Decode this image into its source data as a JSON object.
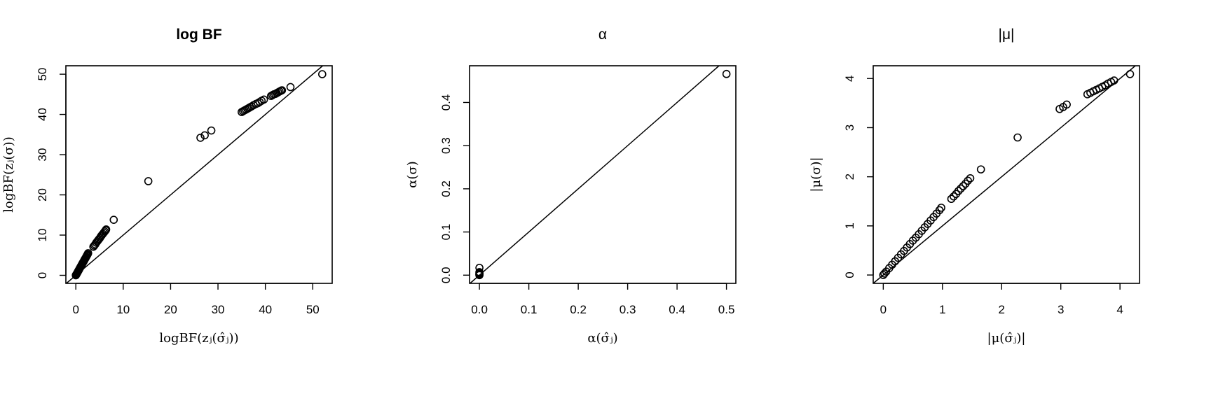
{
  "chart_data": [
    {
      "type": "scatter",
      "title": "log BF",
      "title_bold": true,
      "xlabel": "logBF(zⱼ(σ̂ⱼ))",
      "ylabel": "logBF(zⱼ(σ))",
      "xlim": [
        -2.1,
        54.1
      ],
      "ylim": [
        -2.0,
        52.1
      ],
      "xticks": [
        0,
        10,
        20,
        30,
        40,
        50
      ],
      "yticks": [
        0,
        10,
        20,
        30,
        40,
        50
      ],
      "xtick_labels": [
        "0",
        "10",
        "20",
        "30",
        "40",
        "50"
      ],
      "ytick_labels": [
        "0",
        "10",
        "20",
        "30",
        "40",
        "50"
      ],
      "reference_line": "y = x",
      "grid": false,
      "points": [
        [
          0,
          0
        ],
        [
          0.05,
          0.1
        ],
        [
          0.1,
          0.2
        ],
        [
          0.2,
          0.4
        ],
        [
          0.3,
          0.6
        ],
        [
          0.4,
          0.8
        ],
        [
          0.5,
          1.05
        ],
        [
          0.6,
          1.25
        ],
        [
          0.7,
          1.45
        ],
        [
          0.8,
          1.7
        ],
        [
          0.9,
          1.9
        ],
        [
          1.0,
          2.1
        ],
        [
          1.1,
          2.3
        ],
        [
          1.2,
          2.5
        ],
        [
          1.3,
          2.75
        ],
        [
          1.4,
          2.95
        ],
        [
          1.5,
          3.15
        ],
        [
          1.6,
          3.35
        ],
        [
          1.7,
          3.55
        ],
        [
          1.8,
          3.8
        ],
        [
          1.9,
          4.0
        ],
        [
          2.0,
          4.2
        ],
        [
          2.1,
          4.4
        ],
        [
          2.2,
          4.6
        ],
        [
          2.3,
          4.85
        ],
        [
          2.4,
          5.05
        ],
        [
          2.5,
          5.25
        ],
        [
          2.6,
          5.5
        ],
        [
          3.7,
          7.1
        ],
        [
          3.9,
          7.4
        ],
        [
          4.1,
          7.7
        ],
        [
          4.3,
          8.1
        ],
        [
          4.5,
          8.4
        ],
        [
          4.7,
          8.7
        ],
        [
          4.9,
          9.0
        ],
        [
          5.1,
          9.3
        ],
        [
          5.3,
          9.7
        ],
        [
          5.5,
          10.0
        ],
        [
          5.7,
          10.3
        ],
        [
          5.9,
          10.6
        ],
        [
          6.1,
          10.9
        ],
        [
          6.3,
          11.2
        ],
        [
          6.4,
          11.4
        ],
        [
          8.0,
          13.8
        ],
        [
          15.3,
          23.4
        ],
        [
          26.3,
          34.2
        ],
        [
          27.2,
          34.8
        ],
        [
          28.6,
          36.0
        ],
        [
          35.0,
          40.6
        ],
        [
          35.3,
          40.8
        ],
        [
          35.6,
          41.0
        ],
        [
          35.9,
          41.2
        ],
        [
          36.2,
          41.4
        ],
        [
          36.5,
          41.6
        ],
        [
          36.8,
          41.8
        ],
        [
          37.1,
          42.0
        ],
        [
          37.5,
          42.3
        ],
        [
          38.0,
          42.6
        ],
        [
          38.4,
          42.8
        ],
        [
          38.8,
          43.1
        ],
        [
          39.2,
          43.4
        ],
        [
          39.7,
          43.7
        ],
        [
          41.2,
          44.6
        ],
        [
          41.5,
          44.8
        ],
        [
          41.8,
          45.0
        ],
        [
          42.1,
          45.1
        ],
        [
          42.4,
          45.3
        ],
        [
          42.7,
          45.5
        ],
        [
          43.0,
          45.7
        ],
        [
          43.3,
          45.9
        ],
        [
          43.5,
          46.0
        ],
        [
          45.3,
          46.8
        ],
        [
          52.0,
          50.0
        ]
      ]
    },
    {
      "type": "scatter",
      "title": "α",
      "title_bold": false,
      "xlabel": "α(σ̂ⱼ)",
      "ylabel": "α(σ)",
      "xlim": [
        -0.02,
        0.519
      ],
      "ylim": [
        -0.019,
        0.485
      ],
      "xticks": [
        0,
        0.1,
        0.2,
        0.3,
        0.4,
        0.5
      ],
      "yticks": [
        0,
        0.1,
        0.2,
        0.3,
        0.4
      ],
      "xtick_labels": [
        "0.0",
        "0.1",
        "0.2",
        "0.3",
        "0.4",
        "0.5"
      ],
      "ytick_labels": [
        "0.0",
        "0.1",
        "0.2",
        "0.3",
        "0.4"
      ],
      "reference_line": "y = x",
      "grid": false,
      "points": [
        [
          0,
          0
        ],
        [
          0,
          0.001
        ],
        [
          0,
          0.002
        ],
        [
          0,
          0.003
        ],
        [
          0,
          0.005
        ],
        [
          0,
          0.007
        ],
        [
          0,
          0.017
        ],
        [
          0.5,
          0.466
        ]
      ]
    },
    {
      "type": "scatter",
      "title": "|μ|",
      "title_bold": false,
      "xlabel": "|μ(σ̂ⱼ)|",
      "ylabel": "|μ(σ)|",
      "xlim": [
        -0.17,
        4.33
      ],
      "ylim": [
        -0.17,
        4.26
      ],
      "xticks": [
        0,
        1,
        2,
        3,
        4
      ],
      "yticks": [
        0,
        1,
        2,
        3,
        4
      ],
      "xtick_labels": [
        "0",
        "1",
        "2",
        "3",
        "4"
      ],
      "ytick_labels": [
        "0",
        "1",
        "2",
        "3",
        "4"
      ],
      "reference_line": "y = x",
      "grid": false,
      "points": [
        [
          0,
          0
        ],
        [
          0.02,
          0.03
        ],
        [
          0.05,
          0.07
        ],
        [
          0.1,
          0.14
        ],
        [
          0.15,
          0.21
        ],
        [
          0.2,
          0.28
        ],
        [
          0.25,
          0.35
        ],
        [
          0.3,
          0.42
        ],
        [
          0.35,
          0.49
        ],
        [
          0.4,
          0.56
        ],
        [
          0.45,
          0.63
        ],
        [
          0.5,
          0.7
        ],
        [
          0.55,
          0.76
        ],
        [
          0.6,
          0.83
        ],
        [
          0.65,
          0.9
        ],
        [
          0.7,
          0.97
        ],
        [
          0.75,
          1.04
        ],
        [
          0.8,
          1.11
        ],
        [
          0.85,
          1.18
        ],
        [
          0.9,
          1.25
        ],
        [
          0.95,
          1.32
        ],
        [
          0.98,
          1.37
        ],
        [
          1.15,
          1.55
        ],
        [
          1.19,
          1.6
        ],
        [
          1.23,
          1.65
        ],
        [
          1.27,
          1.71
        ],
        [
          1.31,
          1.76
        ],
        [
          1.35,
          1.81
        ],
        [
          1.39,
          1.86
        ],
        [
          1.43,
          1.92
        ],
        [
          1.47,
          1.97
        ],
        [
          1.65,
          2.15
        ],
        [
          2.27,
          2.8
        ],
        [
          2.98,
          3.38
        ],
        [
          3.04,
          3.42
        ],
        [
          3.1,
          3.47
        ],
        [
          3.45,
          3.68
        ],
        [
          3.5,
          3.71
        ],
        [
          3.55,
          3.74
        ],
        [
          3.6,
          3.77
        ],
        [
          3.65,
          3.8
        ],
        [
          3.7,
          3.83
        ],
        [
          3.75,
          3.86
        ],
        [
          3.8,
          3.9
        ],
        [
          3.85,
          3.93
        ],
        [
          3.9,
          3.96
        ],
        [
          4.17,
          4.09
        ]
      ]
    }
  ]
}
